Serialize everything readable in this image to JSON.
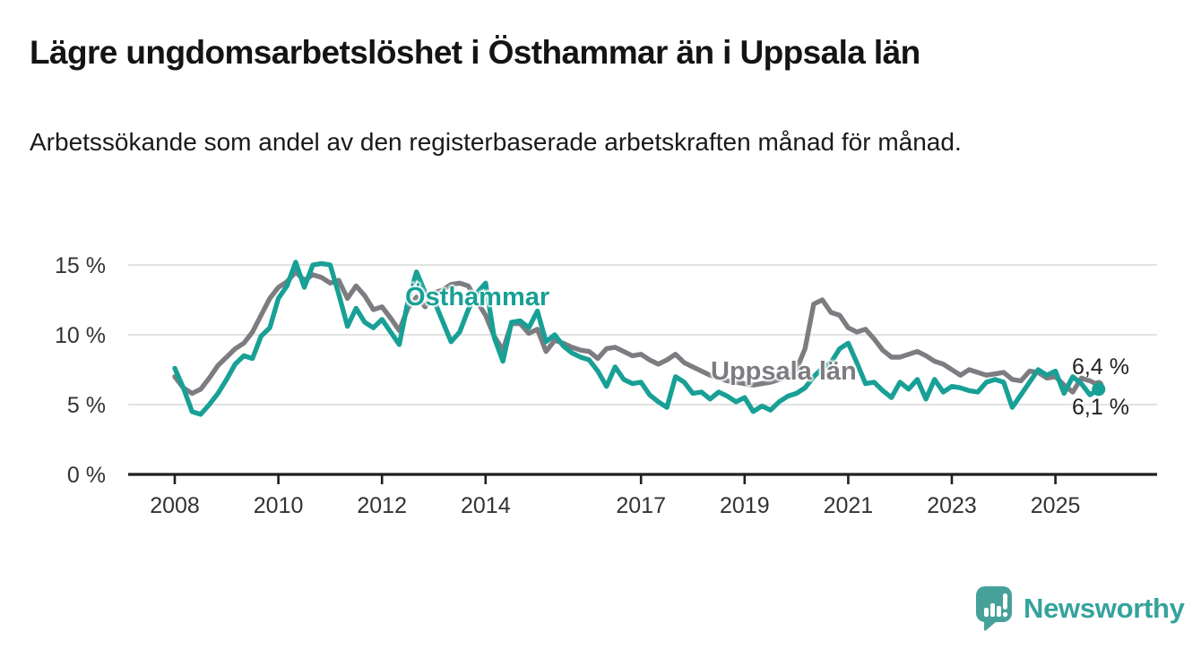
{
  "header": {
    "title": "Lägre ungdomsarbetslöshet i Östhammar än i Uppsala län",
    "subtitle": "Arbetssökande som andel av den registerbaserade arbetskraften månad för månad."
  },
  "chart_data": {
    "type": "line",
    "title": "Lägre ungdomsarbetslöshet i Östhammar än i Uppsala län",
    "xlabel": "",
    "ylabel": "",
    "x_start_year": 2008,
    "points_per_year": 6,
    "x_ticks": [
      2008,
      2010,
      2012,
      2014,
      2017,
      2019,
      2021,
      2023,
      2025
    ],
    "y_ticks": [
      {
        "value": 0,
        "label": "0 %"
      },
      {
        "value": 5,
        "label": "5 %"
      },
      {
        "value": 10,
        "label": "10 %"
      },
      {
        "value": 15,
        "label": "15 %"
      }
    ],
    "ylim": [
      0,
      16.2
    ],
    "grid": "horizontal",
    "legend_position": "inline-labels",
    "series": [
      {
        "name": "Östhammar",
        "color": "#18A096",
        "end_label": "6,1 %",
        "end_value": 6.1,
        "values": [
          7.6,
          6.2,
          4.5,
          4.3,
          5.0,
          5.8,
          6.8,
          7.9,
          8.5,
          8.3,
          9.9,
          10.5,
          12.6,
          13.5,
          15.2,
          13.4,
          15.0,
          15.1,
          15.0,
          12.9,
          10.6,
          11.9,
          10.9,
          10.5,
          11.1,
          10.2,
          9.3,
          12.4,
          14.5,
          13.0,
          12.5,
          11.0,
          9.5,
          10.2,
          11.8,
          13.0,
          13.7,
          9.8,
          8.1,
          10.9,
          11.0,
          10.5,
          11.7,
          9.5,
          10.0,
          9.2,
          8.7,
          8.4,
          8.2,
          7.4,
          6.3,
          7.7,
          6.8,
          6.5,
          6.6,
          5.7,
          5.2,
          4.8,
          7.0,
          6.6,
          5.8,
          5.9,
          5.4,
          5.9,
          5.6,
          5.2,
          5.5,
          4.5,
          4.9,
          4.6,
          5.2,
          5.6,
          5.8,
          6.2,
          7.0,
          7.6,
          8.0,
          9.0,
          9.4,
          8.0,
          6.5,
          6.6,
          6.0,
          5.5,
          6.6,
          6.1,
          6.8,
          5.4,
          6.8,
          5.9,
          6.3,
          6.2,
          6.0,
          5.9,
          6.6,
          6.8,
          6.6,
          4.8,
          5.7,
          6.6,
          7.5,
          7.1,
          7.4,
          5.8,
          7.0,
          6.5,
          5.7,
          6.1
        ]
      },
      {
        "name": "Uppsala län",
        "color": "#7C7C81",
        "end_label": "6,4 %",
        "end_value": 6.4,
        "values": [
          7.0,
          6.2,
          5.8,
          6.1,
          6.9,
          7.8,
          8.4,
          9.0,
          9.4,
          10.2,
          11.4,
          12.6,
          13.4,
          13.8,
          14.5,
          13.9,
          14.3,
          14.1,
          13.7,
          13.9,
          12.6,
          13.5,
          12.8,
          11.8,
          12.0,
          11.2,
          10.3,
          11.9,
          12.7,
          12.0,
          13.0,
          13.2,
          13.6,
          13.7,
          13.5,
          12.4,
          11.4,
          9.9,
          8.9,
          10.8,
          10.8,
          10.1,
          10.4,
          8.8,
          9.6,
          9.4,
          9.1,
          8.9,
          8.8,
          8.3,
          9.0,
          9.1,
          8.8,
          8.5,
          8.6,
          8.2,
          7.9,
          8.2,
          8.6,
          8.0,
          7.7,
          7.4,
          7.1,
          6.9,
          6.7,
          6.6,
          6.5,
          6.4,
          6.5,
          6.6,
          6.8,
          7.0,
          7.5,
          9.0,
          12.2,
          12.5,
          11.6,
          11.4,
          10.5,
          10.2,
          10.4,
          9.7,
          8.9,
          8.4,
          8.4,
          8.6,
          8.8,
          8.5,
          8.1,
          7.9,
          7.5,
          7.1,
          7.5,
          7.3,
          7.1,
          7.2,
          7.3,
          6.8,
          6.7,
          7.4,
          7.3,
          6.9,
          7.0,
          6.4,
          5.9,
          6.9,
          6.7,
          6.4
        ]
      }
    ],
    "colors": {
      "accent_teal": "#18A096",
      "series_gray": "#7C7C81",
      "gridline": "#D9D9D9",
      "axis": "#1F1F1F",
      "tick_label": "#333333"
    }
  },
  "footer": {
    "brand": "Newsworthy",
    "logo_icon": "bar-chart-speech-bubble-icon",
    "logo_color": "#47A19B"
  }
}
